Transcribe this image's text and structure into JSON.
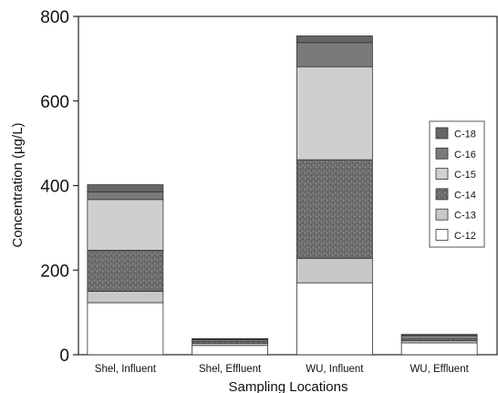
{
  "chart_data": {
    "type": "bar",
    "stacked": true,
    "title": "",
    "xlabel": "Sampling Locations",
    "ylabel": "Concentration (µg/L)",
    "ylim": [
      0,
      800
    ],
    "yticks": [
      0,
      200,
      400,
      600,
      800
    ],
    "grid": false,
    "legend_position": "right",
    "categories": [
      "Shel, Influent",
      "Shel, Effluent",
      "WU, Influent",
      "WU, Effluent"
    ],
    "series": [
      {
        "name": "C-12",
        "values": [
          123,
          22,
          170,
          28
        ],
        "color": "#ffffff",
        "pattern": "none"
      },
      {
        "name": "C-13",
        "values": [
          27,
          5,
          58,
          5
        ],
        "color": "#c8c8c8",
        "pattern": "none"
      },
      {
        "name": "C-14",
        "values": [
          97,
          5,
          233,
          6
        ],
        "color": "#6e6e6e",
        "pattern": "speckle"
      },
      {
        "name": "C-15",
        "values": [
          120,
          3,
          220,
          4
        ],
        "color": "#cfcfcf",
        "pattern": "none"
      },
      {
        "name": "C-16",
        "values": [
          18,
          2,
          57,
          3
        ],
        "color": "#7a7a7a",
        "pattern": "none"
      },
      {
        "name": "C-18",
        "values": [
          17,
          1,
          16,
          2
        ],
        "color": "#666666",
        "pattern": "none"
      }
    ]
  }
}
